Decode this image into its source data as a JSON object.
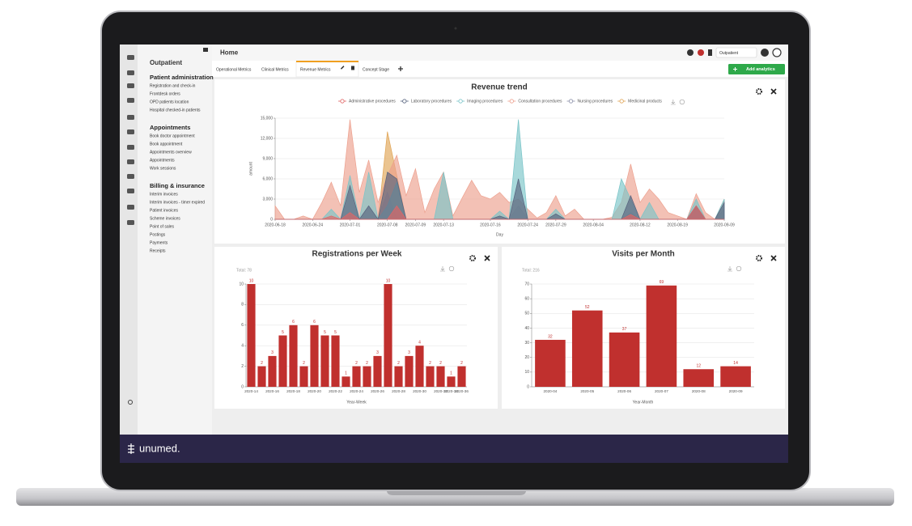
{
  "header": {
    "title": "Home",
    "department": "Outpatient"
  },
  "sidebar": {
    "title": "Outpatient",
    "sections": [
      {
        "title": "Patient administration",
        "items": [
          "Registration and check-in",
          "Frontdesk orders",
          "OPD patients location",
          "Hospital checked-in patients"
        ]
      },
      {
        "title": "Appointments",
        "items": [
          "Book doctor appointment",
          "Book appointment",
          "Appointments overview",
          "Appointments",
          "Work sessions"
        ]
      },
      {
        "title": "Billing & insurance",
        "items": [
          "Interim invoices",
          "Interim invoices - timer expired",
          "Patient invoices",
          "Scheme invoices",
          "Point of sales",
          "Postings",
          "Payments",
          "Receipts"
        ]
      }
    ]
  },
  "tabs": [
    "Operational Metrics",
    "Clinical Metrics",
    "Revenue Metrics",
    "Concept Stage"
  ],
  "add_button": "Add analytics",
  "brand": "unumed.",
  "chart_data": [
    {
      "type": "area",
      "title": "Revenue trend",
      "xlabel": "Day",
      "ylabel": "amount",
      "categories": [
        "2020-06-18",
        null,
        null,
        null,
        "2020-06-24",
        null,
        null,
        null,
        "2020-07-01",
        null,
        null,
        null,
        "2020-07-08",
        null,
        null,
        "2020-07-09",
        null,
        null,
        "2020-07-13",
        null,
        null,
        null,
        null,
        "2020-07-16",
        null,
        null,
        null,
        "2020-07-24",
        null,
        null,
        "2020-07-29",
        null,
        null,
        null,
        "2020-08-04",
        null,
        null,
        null,
        null,
        "2020-08-12",
        null,
        null,
        null,
        "2020-08-19",
        null,
        null,
        null,
        null,
        "2020-09-09"
      ],
      "ylim": [
        0,
        15000
      ],
      "yticks": [
        0,
        {
          "value": 3000,
          "label": "3,000"
        },
        {
          "value": 6000,
          "label": "6,000"
        },
        {
          "value": 9000,
          "label": "9,000"
        },
        {
          "value": 12000,
          "label": "12,000"
        },
        {
          "value": 15000,
          "label": "15,000"
        }
      ],
      "grid": true,
      "series": [
        {
          "name": "Administrative procedures",
          "color": "#e06666",
          "values": [
            0,
            0,
            0,
            0,
            0,
            0,
            500,
            0,
            1000,
            0,
            0,
            0,
            0,
            2000,
            0,
            0,
            0,
            0,
            0,
            0,
            0,
            0,
            0,
            0,
            0,
            0,
            0,
            0,
            0,
            0,
            0,
            0,
            0,
            0,
            0,
            0,
            0,
            0,
            700,
            0,
            0,
            0,
            0,
            0,
            0,
            2000,
            0,
            0,
            0
          ]
        },
        {
          "name": "Laboratory procedures",
          "color": "#56627e",
          "values": [
            0,
            0,
            0,
            0,
            0,
            0,
            0,
            0,
            5000,
            0,
            2000,
            0,
            7000,
            6000,
            0,
            0,
            0,
            0,
            0,
            0,
            0,
            0,
            0,
            0,
            500,
            0,
            6000,
            0,
            0,
            0,
            800,
            0,
            0,
            0,
            0,
            0,
            0,
            0,
            3500,
            0,
            0,
            0,
            0,
            0,
            0,
            2000,
            0,
            0,
            2500
          ]
        },
        {
          "name": "Imaging procedures",
          "color": "#79c4c8",
          "values": [
            0,
            0,
            0,
            0,
            0,
            0,
            1500,
            0,
            6500,
            0,
            7000,
            0,
            2000,
            5500,
            0,
            0,
            0,
            0,
            7000,
            0,
            0,
            0,
            0,
            0,
            1200,
            0,
            14800,
            0,
            0,
            0,
            1500,
            0,
            0,
            0,
            0,
            0,
            0,
            6000,
            3000,
            0,
            2500,
            0,
            0,
            0,
            0,
            3000,
            0,
            0,
            3000
          ]
        },
        {
          "name": "Consultation procedures",
          "color": "#eda08e",
          "values": [
            2000,
            0,
            0,
            500,
            0,
            2500,
            5500,
            2000,
            14800,
            4000,
            8800,
            2500,
            6500,
            9500,
            3500,
            7500,
            1000,
            4500,
            7000,
            500,
            3200,
            5800,
            3500,
            3000,
            4000,
            2500,
            3000,
            1500,
            200,
            1000,
            3500,
            500,
            1500,
            0,
            0,
            0,
            300,
            2500,
            8200,
            2500,
            4500,
            3000,
            1000,
            500,
            0,
            3800,
            1000,
            0,
            3000
          ]
        },
        {
          "name": "Nursing procedures",
          "color": "#8a8fa8",
          "values": [
            0,
            0,
            0,
            0,
            0,
            0,
            0,
            0,
            0,
            0,
            0,
            0,
            4000,
            0,
            0,
            0,
            0,
            0,
            0,
            0,
            0,
            0,
            0,
            0,
            0,
            0,
            2000,
            0,
            0,
            0,
            0,
            0,
            0,
            0,
            0,
            0,
            0,
            0,
            1000,
            0,
            0,
            0,
            0,
            0,
            0,
            0,
            0,
            0,
            1500
          ]
        },
        {
          "name": "Medicinal products",
          "color": "#e0a455",
          "values": [
            0,
            0,
            0,
            0,
            0,
            0,
            0,
            0,
            0,
            0,
            0,
            0,
            13000,
            6500,
            0,
            0,
            0,
            0,
            0,
            0,
            0,
            0,
            0,
            0,
            0,
            0,
            0,
            0,
            0,
            0,
            0,
            0,
            0,
            0,
            0,
            0,
            0,
            0,
            0,
            0,
            0,
            0,
            0,
            0,
            0,
            0,
            0,
            0,
            0
          ]
        }
      ]
    },
    {
      "type": "bar",
      "title": "Registrations per Week",
      "total_label": "Total: 78",
      "xlabel": "Year-Week",
      "categories": [
        "2020-14",
        null,
        "2020-16",
        null,
        "2020-18",
        null,
        "2020-20",
        null,
        "2020-22",
        null,
        "2020-24",
        null,
        "2020-26",
        null,
        "2020-28",
        null,
        "2020-30",
        null,
        "2020-32",
        "2020-34",
        "2020-36"
      ],
      "values": [
        10,
        2,
        3,
        5,
        6,
        2,
        6,
        5,
        5,
        1,
        2,
        2,
        3,
        10,
        2,
        3,
        4,
        2,
        2,
        1,
        2
      ],
      "color": "#c0302e",
      "ylim": [
        0,
        10
      ],
      "yticks": [
        0,
        2,
        4,
        6,
        8,
        10
      ],
      "grid": true
    },
    {
      "type": "bar",
      "title": "Visits per Month",
      "total_label": "Total: 216",
      "xlabel": "Year-Month",
      "categories": [
        "2020-04",
        "2020-05",
        "2020-06",
        "2020-07",
        "2020-08",
        "2020-09"
      ],
      "values": [
        32,
        52,
        37,
        69,
        12,
        14
      ],
      "color": "#c0302e",
      "ylim": [
        0,
        70
      ],
      "yticks": [
        0,
        10,
        20,
        30,
        40,
        50,
        60,
        70
      ],
      "grid": true
    }
  ]
}
